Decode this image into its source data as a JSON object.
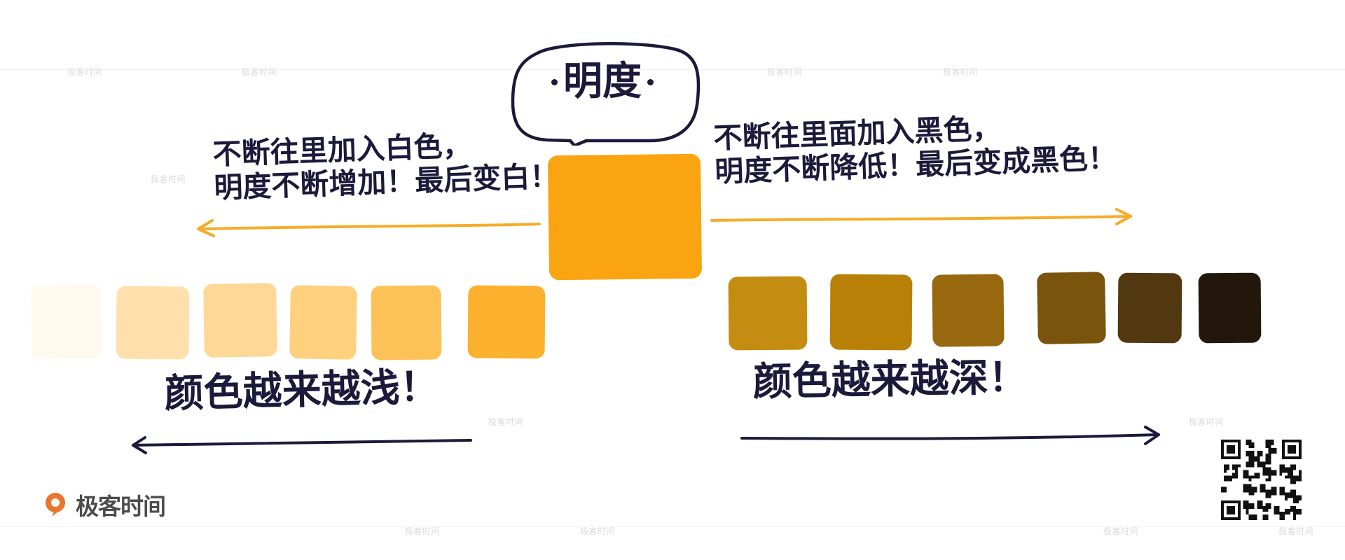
{
  "diagram": {
    "title": "明度",
    "left_description": "不断往里加入白色，\n明度不断增加！最后变白！",
    "right_description": "不断往里面加入黑色，\n明度不断降低！最后变成黑色！",
    "bottom_left": "颜色越来越浅！",
    "bottom_right": "颜色越来越深！",
    "base_color": "#FBA411",
    "lighter_swatches": [
      "#FFF9EE",
      "#FFE0AD",
      "#FFD796",
      "#FFD17E",
      "#FDC257",
      "#FBB12E"
    ],
    "darker_swatches": [
      "#C58C12",
      "#B98008",
      "#97680D",
      "#7A530D",
      "#513810",
      "#22170A"
    ]
  },
  "brand": {
    "name": "极客时间",
    "color": "#E8762D"
  },
  "watermark": {
    "text": "极客时间"
  },
  "icons": {
    "brand": "brand-logo-icon",
    "qr": "qr-code-icon",
    "speech": "speech-bubble-icon",
    "arrow_left": "arrow-left-icon",
    "arrow_right": "arrow-right-icon"
  }
}
